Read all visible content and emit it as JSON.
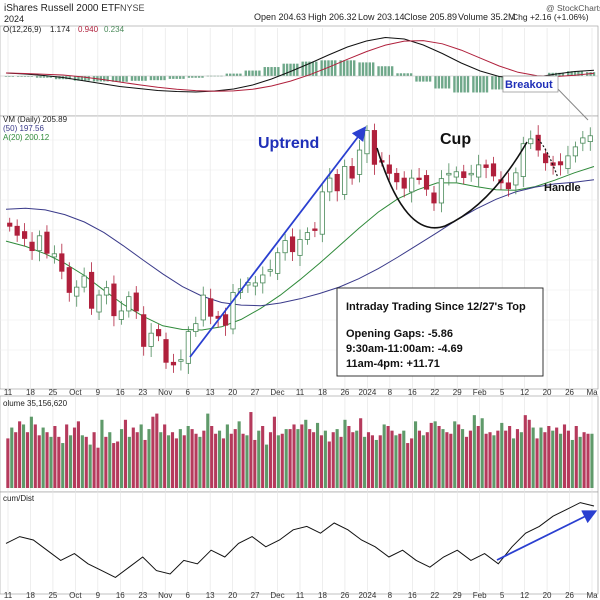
{
  "header": {
    "title": "iShares Russell 2000 ETF",
    "exchange": "NYSE",
    "year": "2024",
    "stats": {
      "open": "Open 204.63",
      "high": "High 206.32",
      "low": "Low 203.14",
      "close": "Close 205.89",
      "volume": "Volume 35.2M",
      "change": "Chg +2.16 (+1.06%)"
    },
    "credit": "@ StockCharts.com"
  },
  "panels": {
    "macd": {
      "label": "O(12,26,9)",
      "v1": "1.174",
      "v2": "0.940",
      "v3": "0.234"
    },
    "price": {
      "label": "VM (Daily) 205.89",
      "ma50": "(50) 197.56",
      "ma20": "A(20) 200.12"
    },
    "volume": {
      "label": "olume 35,156,620"
    },
    "accum": {
      "label": "cum/Dist"
    }
  },
  "annotations": {
    "uptrend": "Uptrend",
    "cup": "Cup",
    "handle": "Handle",
    "breakout": "Breakout",
    "box_title": "Intraday Trading Since 12/27's Top",
    "box_line1": "Opening Gaps:  -5.86",
    "box_line2": "9:30am-11:00am:  -4.69",
    "box_line3": "11am-4pm:  +11.71"
  },
  "colors": {
    "up": "#4a8a5a",
    "down": "#b0203c",
    "ma20": "#2f8a3a",
    "ma50": "#3a3a8a",
    "arrow": "#2a3fd0",
    "volume_up": "#5f9a6a",
    "volume_down": "#b53a5c"
  },
  "chart_data": {
    "type": "candlestick",
    "x_tick_labels": [
      "11",
      "18",
      "25",
      "Oct",
      "9",
      "16",
      "23",
      "Nov",
      "6",
      "13",
      "20",
      "27",
      "Dec",
      "11",
      "18",
      "26",
      "2024",
      "8",
      "16",
      "22",
      "29",
      "Feb",
      "5",
      "12",
      "20",
      "26",
      "Ma"
    ],
    "price_close": [
      188.8,
      187.1,
      186.5,
      184.2,
      187.0,
      183.7,
      183.6,
      180.3,
      176.3,
      177.3,
      179.4,
      173.3,
      175.8,
      177.2,
      171.9,
      172.8,
      175.5,
      172.8,
      166.1,
      168.6,
      168.1,
      163.1,
      162.6,
      163.6,
      168.9,
      170.4,
      175.8,
      171.8,
      171.4,
      170.1,
      176.3,
      177.0,
      178.2,
      178.1,
      179.6,
      180.6,
      183.8,
      186.1,
      184.0,
      186.3,
      187.6,
      188.0,
      195.3,
      197.9,
      195.5,
      200.1,
      197.9,
      203.2,
      206.9,
      200.5,
      201.1,
      198.8,
      197.2,
      196.0,
      197.9,
      197.7,
      195.8,
      193.2,
      197.8,
      198.8,
      199.1,
      198.0,
      198.8,
      200.4,
      199.9,
      198.3,
      197.0,
      195.9,
      198.9,
      204.4,
      205.3,
      203.2,
      200.8,
      200.3,
      200.4,
      202.1,
      203.8,
      205.5,
      205.9
    ],
    "series": [
      {
        "name": "MA20",
        "values": [
          186.0,
          185.0,
          183.6,
          181.8,
          179.5,
          176.7,
          174.0,
          171.8,
          170.0,
          169.3,
          169.2,
          169.8,
          171.2,
          173.3,
          175.8,
          178.7,
          181.8,
          185.1,
          188.4,
          191.5,
          194.0,
          195.7,
          197.0,
          197.0,
          196.3,
          195.7,
          195.6,
          196.3,
          197.5,
          198.9,
          200.1
        ]
      },
      {
        "name": "MA50",
        "values": [
          192.0,
          192.2,
          191.9,
          191.0,
          189.6,
          187.6,
          185.1,
          182.4,
          179.8,
          177.4,
          175.6,
          174.4,
          173.9,
          173.8,
          174.3,
          175.1,
          176.1,
          177.3,
          178.9,
          180.8,
          183.0,
          185.3,
          187.6,
          190.0,
          192.1,
          193.9,
          195.3,
          196.2,
          196.8,
          197.1,
          197.6
        ]
      }
    ],
    "volume": [
      32,
      39,
      36,
      43,
      41,
      36,
      46,
      41,
      34,
      39,
      36,
      33,
      40,
      33,
      29,
      41,
      34,
      39,
      43,
      34,
      33,
      28,
      36,
      26,
      44,
      33,
      36,
      29,
      30,
      38,
      44,
      33,
      39,
      36,
      41,
      31,
      38,
      46,
      48,
      36,
      41,
      34,
      36,
      32,
      38,
      34,
      40,
      38,
      35,
      33,
      37,
      48,
      40,
      35,
      37,
      32,
      41,
      35,
      38,
      43,
      35,
      34,
      49,
      31,
      37,
      40,
      28,
      36,
      46,
      34,
      35,
      38,
      38,
      41,
      38,
      41,
      44,
      38,
      36,
      42,
      34,
      37,
      30,
      36,
      38,
      33,
      44,
      40,
      36,
      37,
      45,
      33,
      36,
      34,
      31,
      34,
      41,
      40,
      37,
      34,
      35,
      37,
      29,
      32,
      43,
      37,
      34,
      36,
      42,
      43,
      40,
      38,
      36,
      35,
      43,
      41,
      38,
      33,
      37,
      47,
      40,
      45,
      35,
      36,
      34,
      37,
      42,
      37,
      40,
      32,
      38,
      36,
      47,
      44,
      39,
      32,
      39,
      36,
      40,
      37,
      39,
      35,
      41,
      37,
      31,
      40,
      33,
      36,
      35,
      35
    ],
    "macd_line": [
      0.6,
      0.4,
      0.1,
      -0.3,
      -0.9,
      -1.5,
      -2.1,
      -2.5,
      -2.9,
      -3.1,
      -3.2,
      -3.0,
      -2.6,
      -1.8,
      -0.6,
      0.9,
      2.5,
      4.2,
      5.8,
      7.0,
      7.7,
      7.4,
      6.2,
      4.5,
      2.6,
      1.0,
      -0.1,
      -0.5,
      -0.2,
      0.4,
      0.9,
      1.17
    ],
    "accum_dist": [
      -0.1,
      0.1,
      0.0,
      -0.3,
      -0.6,
      -0.4,
      -0.7,
      -0.9,
      -1.1,
      -0.8,
      -0.5,
      -0.9,
      -1.0,
      -0.6,
      -0.7,
      -0.3,
      -0.5,
      -0.1,
      0.1,
      -0.2,
      0.0,
      0.3,
      0.4,
      0.2,
      0.5,
      0.3,
      0.0,
      -0.2,
      -0.5,
      -0.3,
      -0.6,
      -0.8,
      -0.5,
      -0.3,
      -0.6,
      -0.4,
      -0.7,
      -0.2,
      0.2,
      0.4,
      0.7,
      0.9,
      1.1,
      1.0
    ],
    "xlabel": "",
    "ylabel": ""
  }
}
